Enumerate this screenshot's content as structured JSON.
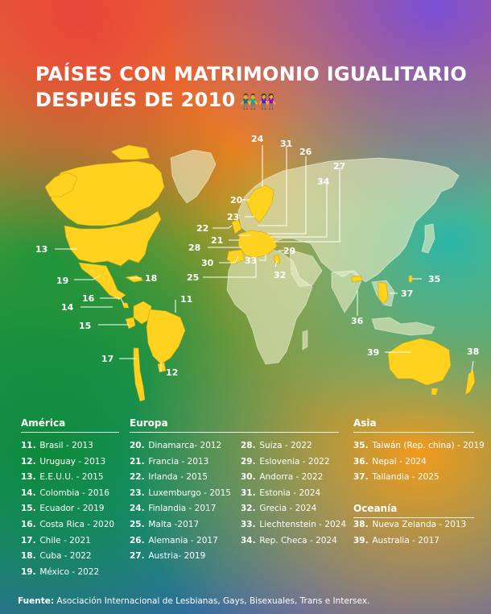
{
  "title": {
    "line1": "PAÍSES CON MATRIMONIO IGUALITARIO",
    "line2": "DESPUÉS DE 2010",
    "emoji": "👬👭"
  },
  "colors": {
    "highlight": "#ffd21f",
    "land": "#e8ecc4",
    "outline": "#ffffff"
  },
  "sections": {
    "america": {
      "title": "América",
      "items": [
        {
          "num": "11.",
          "text": "Brasil - 2013"
        },
        {
          "num": "12.",
          "text": "Uruguay - 2013"
        },
        {
          "num": "13.",
          "text": "E.E.U.U. - 2015"
        },
        {
          "num": "14.",
          "text": "Colombia - 2016"
        },
        {
          "num": "15.",
          "text": "Ecuador - 2019"
        },
        {
          "num": "16.",
          "text": "Costa Rica - 2020"
        },
        {
          "num": "17.",
          "text": "Chile - 2021"
        },
        {
          "num": "18.",
          "text": "Cuba - 2022"
        },
        {
          "num": "19.",
          "text": "México - 2022"
        }
      ]
    },
    "europa": {
      "title": "Europa",
      "items": [
        {
          "num": "20.",
          "text": "Dinamarca- 2012"
        },
        {
          "num": "21.",
          "text": "Francia - 2013"
        },
        {
          "num": "22.",
          "text": "Irlanda - 2015"
        },
        {
          "num": "23.",
          "text": "Luxemburgo - 2015"
        },
        {
          "num": "24.",
          "text": "Finlandia - 2017"
        },
        {
          "num": "25.",
          "text": "Malta -2017"
        },
        {
          "num": "26.",
          "text": "Alemania - 2017"
        },
        {
          "num": "27.",
          "text": "Austria- 2019"
        }
      ]
    },
    "europa2": {
      "items": [
        {
          "num": "28.",
          "text": "Suiza - 2022"
        },
        {
          "num": "29.",
          "text": "Eslovenia - 2022"
        },
        {
          "num": "30.",
          "text": "Andorra - 2022"
        },
        {
          "num": "31.",
          "text": "Estonia - 2024"
        },
        {
          "num": "32.",
          "text": "Grecia - 2024"
        },
        {
          "num": "33.",
          "text": "Liechtenstein - 2024"
        },
        {
          "num": "34.",
          "text": "Rep. Checa - 2024"
        }
      ]
    },
    "asia": {
      "title": "Asia",
      "items": [
        {
          "num": "35.",
          "text": "Taiwán (Rep. china) - 2019"
        },
        {
          "num": "36.",
          "text": "Nepal - 2024"
        },
        {
          "num": "37.",
          "text": "Tailandia - 2025"
        }
      ]
    },
    "oceania": {
      "title": "Oceanía",
      "items": [
        {
          "num": "38.",
          "text": "Nueva Zelanda - 2013"
        },
        {
          "num": "39.",
          "text": "Australia - 2017"
        }
      ]
    }
  },
  "map_labels": [
    "11",
    "12",
    "13",
    "14",
    "15",
    "16",
    "17",
    "18",
    "19",
    "20",
    "21",
    "22",
    "23",
    "24",
    "25",
    "26",
    "27",
    "28",
    "29",
    "30",
    "31",
    "32",
    "33",
    "34",
    "35",
    "36",
    "37",
    "38",
    "39"
  ],
  "source": {
    "label": "Fuente:",
    "text": "Asociación Internacional de Lesbianas, Gays, Bisexuales, Trans e Intersex."
  }
}
